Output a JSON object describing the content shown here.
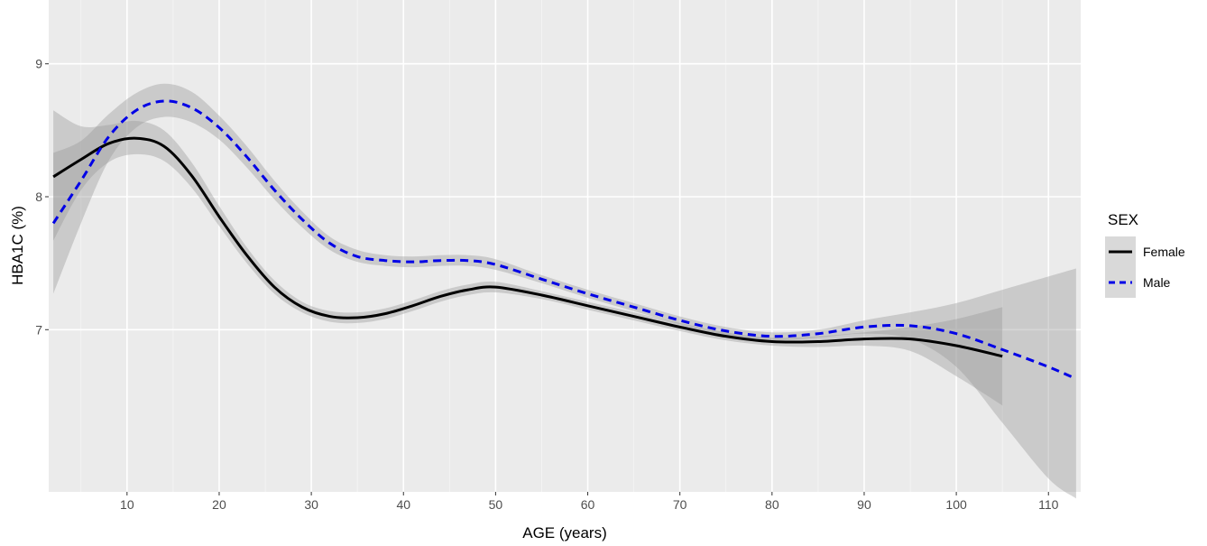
{
  "chart_data": {
    "type": "line",
    "title": "",
    "xlabel": "AGE (years)",
    "ylabel": "HBA1C (%)",
    "xlim": [
      1.5,
      113.5
    ],
    "ylim": [
      5.78,
      9.48
    ],
    "x_ticks": [
      10,
      20,
      30,
      40,
      50,
      60,
      70,
      80,
      90,
      100,
      110
    ],
    "y_ticks": [
      7,
      8,
      9
    ],
    "grid": true,
    "legend": {
      "title": "SEX",
      "placement": "right",
      "entries": [
        "Female",
        "Male"
      ]
    },
    "series": [
      {
        "name": "Female",
        "color": "#000000",
        "style": "solid",
        "x": [
          2,
          5,
          8,
          11,
          14,
          17,
          20,
          23,
          26,
          29,
          32,
          35,
          38,
          41,
          44,
          47,
          50,
          55,
          60,
          65,
          70,
          75,
          80,
          85,
          90,
          95,
          100,
          105
        ],
        "y": [
          8.15,
          8.28,
          8.4,
          8.44,
          8.38,
          8.16,
          7.85,
          7.56,
          7.32,
          7.17,
          7.1,
          7.09,
          7.12,
          7.18,
          7.25,
          7.3,
          7.32,
          7.26,
          7.18,
          7.1,
          7.02,
          6.95,
          6.91,
          6.91,
          6.93,
          6.93,
          6.88,
          6.8
        ],
        "lower": [
          7.67,
          8.05,
          8.26,
          8.32,
          8.27,
          8.07,
          7.78,
          7.5,
          7.27,
          7.13,
          7.06,
          7.05,
          7.08,
          7.14,
          7.21,
          7.26,
          7.28,
          7.23,
          7.15,
          7.07,
          6.99,
          6.92,
          6.88,
          6.87,
          6.88,
          6.84,
          6.65,
          6.43
        ],
        "upper": [
          8.65,
          8.53,
          8.54,
          8.57,
          8.5,
          8.26,
          7.93,
          7.62,
          7.37,
          7.21,
          7.14,
          7.13,
          7.16,
          7.22,
          7.29,
          7.34,
          7.36,
          7.29,
          7.21,
          7.13,
          7.05,
          6.98,
          6.94,
          6.95,
          6.98,
          7.02,
          7.08,
          7.17
        ]
      },
      {
        "name": "Male",
        "color": "#0000e6",
        "style": "dashed",
        "x": [
          2,
          5,
          8,
          11,
          14,
          17,
          20,
          23,
          26,
          29,
          32,
          35,
          38,
          41,
          44,
          47,
          50,
          55,
          60,
          65,
          70,
          75,
          80,
          85,
          90,
          95,
          100,
          105,
          110,
          113
        ],
        "y": [
          7.8,
          8.12,
          8.45,
          8.65,
          8.72,
          8.67,
          8.52,
          8.3,
          8.05,
          7.83,
          7.65,
          7.55,
          7.52,
          7.51,
          7.52,
          7.52,
          7.49,
          7.38,
          7.27,
          7.17,
          7.07,
          6.99,
          6.95,
          6.97,
          7.02,
          7.03,
          6.97,
          6.85,
          6.72,
          6.63
        ],
        "lower": [
          7.27,
          7.8,
          8.27,
          8.52,
          8.6,
          8.56,
          8.43,
          8.22,
          7.98,
          7.77,
          7.6,
          7.51,
          7.48,
          7.47,
          7.48,
          7.48,
          7.45,
          7.35,
          7.24,
          7.14,
          7.04,
          6.96,
          6.92,
          6.94,
          6.97,
          6.93,
          6.72,
          6.3,
          5.88,
          5.73
        ],
        "upper": [
          8.33,
          8.42,
          8.62,
          8.78,
          8.85,
          8.79,
          8.61,
          8.38,
          8.12,
          7.89,
          7.7,
          7.6,
          7.56,
          7.55,
          7.56,
          7.56,
          7.53,
          7.41,
          7.3,
          7.2,
          7.1,
          7.02,
          6.98,
          7.0,
          7.07,
          7.13,
          7.2,
          7.3,
          7.4,
          7.46
        ]
      }
    ]
  }
}
